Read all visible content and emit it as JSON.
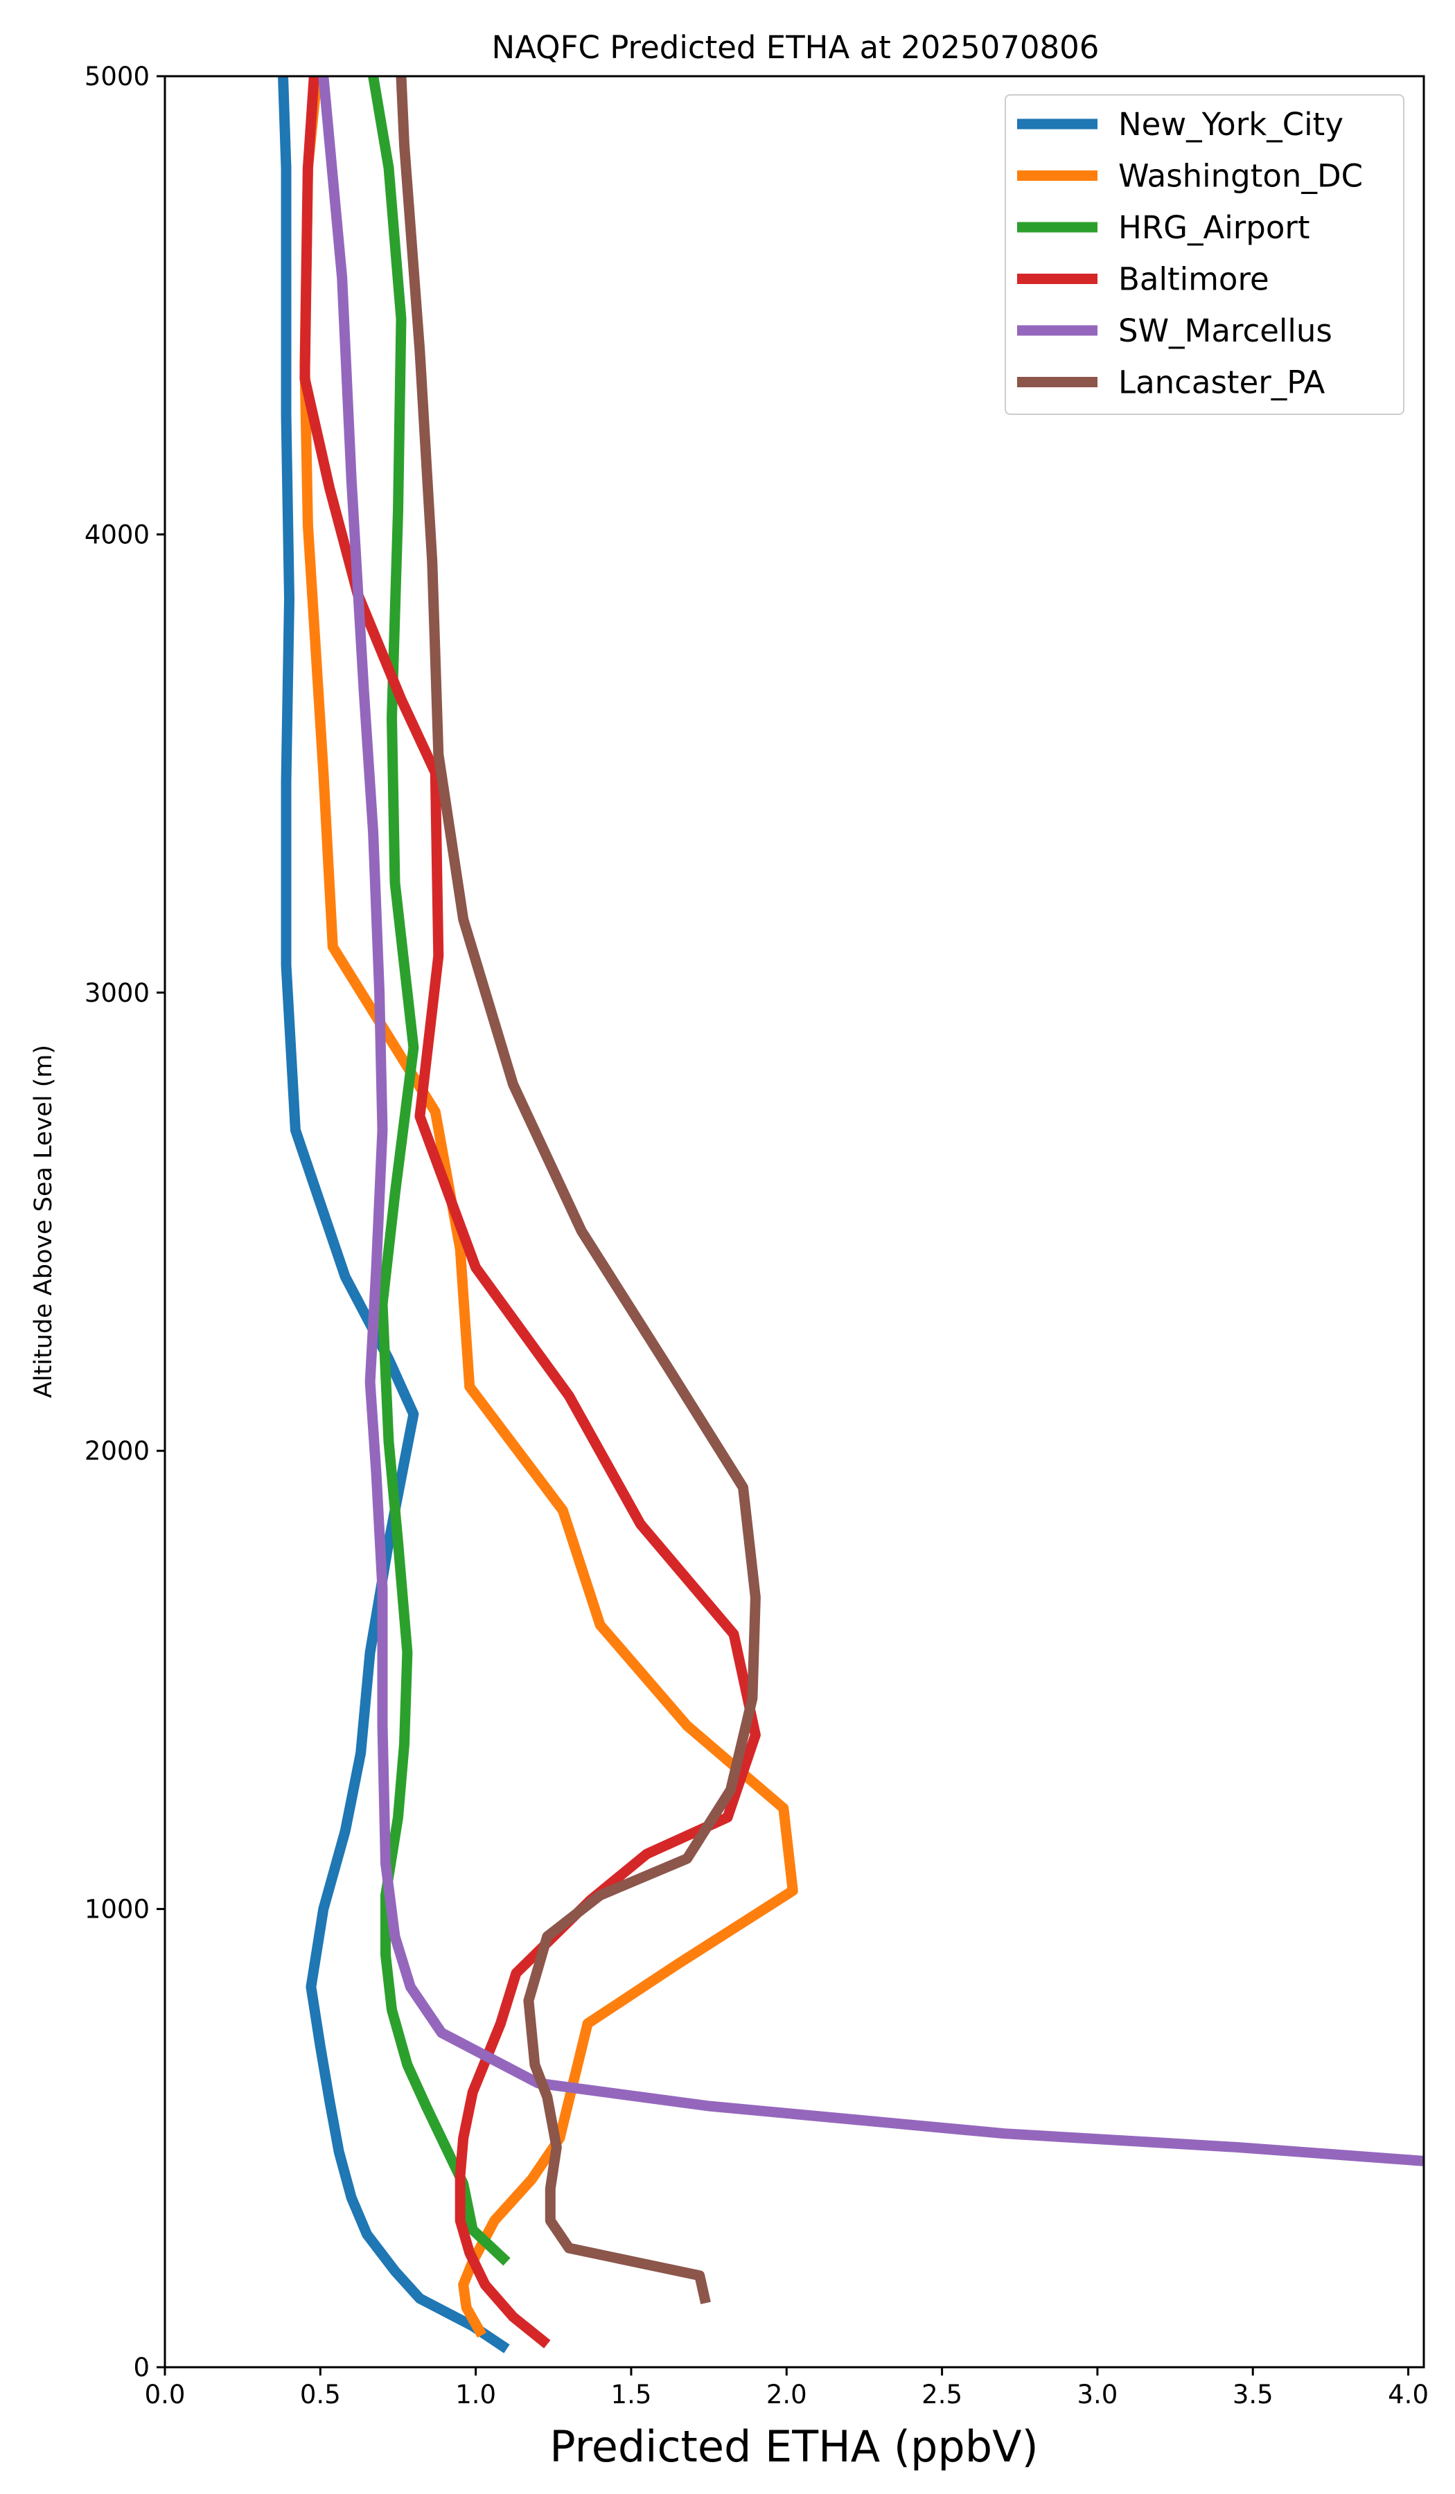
{
  "chart_data": {
    "type": "line",
    "title": "NAQFC Predicted ETHA at 2025070806",
    "xlabel": "Predicted ETHA (ppbV)",
    "ylabel": "Altitude Above Sea Level (m)",
    "xlim": [
      0,
      4.05
    ],
    "ylim": [
      0,
      5000
    ],
    "xticks": [
      "0.0",
      "0.5",
      "1.0",
      "1.5",
      "2.0",
      "2.5",
      "3.0",
      "3.5",
      "4.0"
    ],
    "xtick_values": [
      0,
      0.5,
      1.0,
      1.5,
      2.0,
      2.5,
      3.0,
      3.5,
      4.0
    ],
    "yticks": [
      "0",
      "1000",
      "2000",
      "3000",
      "4000",
      "5000"
    ],
    "ytick_values": [
      0,
      1000,
      2000,
      3000,
      4000,
      5000
    ],
    "grid": false,
    "legend_position": "top-right",
    "series": [
      {
        "name": "New_York_City",
        "color": "#1f77b4",
        "points": [
          [
            1.1,
            40
          ],
          [
            0.99,
            90
          ],
          [
            0.82,
            150
          ],
          [
            0.74,
            210
          ],
          [
            0.65,
            290
          ],
          [
            0.6,
            370
          ],
          [
            0.56,
            470
          ],
          [
            0.53,
            580
          ],
          [
            0.5,
            700
          ],
          [
            0.47,
            830
          ],
          [
            0.51,
            1000
          ],
          [
            0.58,
            1170
          ],
          [
            0.63,
            1340
          ],
          [
            0.66,
            1560
          ],
          [
            0.72,
            1800
          ],
          [
            0.8,
            2080
          ],
          [
            0.72,
            2200
          ],
          [
            0.58,
            2380
          ],
          [
            0.42,
            2700
          ],
          [
            0.39,
            3060
          ],
          [
            0.39,
            3460
          ],
          [
            0.4,
            3860
          ],
          [
            0.39,
            4260
          ],
          [
            0.39,
            4800
          ],
          [
            0.38,
            5000
          ]
        ]
      },
      {
        "name": "Washington_DC",
        "color": "#ff7f0e",
        "points": [
          [
            1.02,
            70
          ],
          [
            0.97,
            130
          ],
          [
            0.96,
            180
          ],
          [
            0.99,
            230
          ],
          [
            1.06,
            320
          ],
          [
            1.18,
            410
          ],
          [
            1.27,
            500
          ],
          [
            1.36,
            750
          ],
          [
            1.65,
            880
          ],
          [
            2.02,
            1040
          ],
          [
            1.99,
            1220
          ],
          [
            1.68,
            1400
          ],
          [
            1.4,
            1620
          ],
          [
            1.28,
            1870
          ],
          [
            0.98,
            2140
          ],
          [
            0.95,
            2440
          ],
          [
            0.87,
            2740
          ],
          [
            0.54,
            3100
          ],
          [
            0.51,
            3480
          ],
          [
            0.46,
            4020
          ],
          [
            0.45,
            4370
          ],
          [
            0.46,
            4800
          ],
          [
            0.49,
            5000
          ]
        ]
      },
      {
        "name": "HRG_Airport",
        "color": "#2ca02c",
        "points": [
          [
            1.1,
            230
          ],
          [
            0.99,
            300
          ],
          [
            0.96,
            400
          ],
          [
            0.84,
            570
          ],
          [
            0.78,
            660
          ],
          [
            0.73,
            780
          ],
          [
            0.71,
            900
          ],
          [
            0.71,
            1030
          ],
          [
            0.75,
            1200
          ],
          [
            0.77,
            1360
          ],
          [
            0.78,
            1560
          ],
          [
            0.75,
            1800
          ],
          [
            0.72,
            2020
          ],
          [
            0.7,
            2320
          ],
          [
            0.74,
            2560
          ],
          [
            0.8,
            2880
          ],
          [
            0.74,
            3240
          ],
          [
            0.73,
            3600
          ],
          [
            0.75,
            4050
          ],
          [
            0.76,
            4470
          ],
          [
            0.72,
            4800
          ],
          [
            0.67,
            5000
          ]
        ]
      },
      {
        "name": "Baltimore",
        "color": "#d62728",
        "points": [
          [
            1.23,
            50
          ],
          [
            1.12,
            110
          ],
          [
            1.03,
            180
          ],
          [
            0.98,
            250
          ],
          [
            0.95,
            320
          ],
          [
            0.95,
            420
          ],
          [
            0.96,
            500
          ],
          [
            0.99,
            600
          ],
          [
            1.08,
            750
          ],
          [
            1.13,
            860
          ],
          [
            1.37,
            1020
          ],
          [
            1.55,
            1120
          ],
          [
            1.81,
            1200
          ],
          [
            1.9,
            1380
          ],
          [
            1.83,
            1600
          ],
          [
            1.53,
            1840
          ],
          [
            1.3,
            2120
          ],
          [
            1.0,
            2400
          ],
          [
            0.82,
            2730
          ],
          [
            0.88,
            3080
          ],
          [
            0.87,
            3480
          ],
          [
            0.76,
            3640
          ],
          [
            0.62,
            3870
          ],
          [
            0.53,
            4100
          ],
          [
            0.45,
            4340
          ],
          [
            0.46,
            4800
          ],
          [
            0.48,
            5000
          ]
        ]
      },
      {
        "name": "SW_Marcellus",
        "color": "#9467bd",
        "points": [
          [
            4.05,
            450
          ],
          [
            3.45,
            480
          ],
          [
            2.7,
            510
          ],
          [
            1.75,
            570
          ],
          [
            1.2,
            620
          ],
          [
            0.89,
            730
          ],
          [
            0.79,
            830
          ],
          [
            0.74,
            940
          ],
          [
            0.71,
            1100
          ],
          [
            0.7,
            1400
          ],
          [
            0.7,
            1700
          ],
          [
            0.68,
            1950
          ],
          [
            0.66,
            2150
          ],
          [
            0.68,
            2400
          ],
          [
            0.7,
            2700
          ],
          [
            0.69,
            3000
          ],
          [
            0.67,
            3350
          ],
          [
            0.64,
            3660
          ],
          [
            0.6,
            4120
          ],
          [
            0.57,
            4560
          ],
          [
            0.51,
            5000
          ]
        ]
      },
      {
        "name": "Lancaster_PA",
        "color": "#8c564b",
        "points": [
          [
            1.74,
            140
          ],
          [
            1.72,
            200
          ],
          [
            1.3,
            260
          ],
          [
            1.24,
            320
          ],
          [
            1.24,
            390
          ],
          [
            1.26,
            480
          ],
          [
            1.23,
            590
          ],
          [
            1.19,
            660
          ],
          [
            1.17,
            800
          ],
          [
            1.23,
            940
          ],
          [
            1.4,
            1030
          ],
          [
            1.68,
            1110
          ],
          [
            1.82,
            1260
          ],
          [
            1.89,
            1460
          ],
          [
            1.9,
            1680
          ],
          [
            1.86,
            1920
          ],
          [
            1.62,
            2180
          ],
          [
            1.34,
            2480
          ],
          [
            1.12,
            2800
          ],
          [
            0.96,
            3160
          ],
          [
            0.88,
            3520
          ],
          [
            0.86,
            3940
          ],
          [
            0.82,
            4400
          ],
          [
            0.77,
            4850
          ],
          [
            0.76,
            5000
          ]
        ]
      }
    ]
  }
}
